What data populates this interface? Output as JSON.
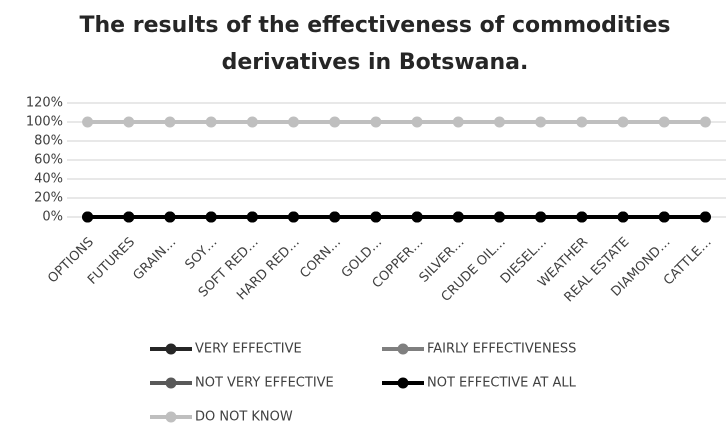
{
  "chart_data": {
    "type": "line",
    "title": [
      "The results of the effectiveness of commodities",
      "derivatives in Botswana."
    ],
    "categories": [
      "OPTIONS",
      "FUTURES",
      "GRAIN…",
      "SOY…",
      "SOFT RED…",
      "HARD RED…",
      "CORN…",
      "GOLD…",
      "COPPER…",
      "SILVER…",
      "CRUDE OIL…",
      "DIESEL…",
      "WEATHER",
      "REAL ESTATE",
      "DIAMOND…",
      "CATTLE…"
    ],
    "series": [
      {
        "name": "DO NOT KNOW",
        "color": "#bfbfbf",
        "values": [
          100,
          100,
          100,
          100,
          100,
          100,
          100,
          100,
          100,
          100,
          100,
          100,
          100,
          100,
          100,
          100
        ]
      },
      {
        "name": "FAIRLY EFFECTIVENESS",
        "color": "#7f7f7f",
        "values": [
          0,
          0,
          0,
          0,
          0,
          0,
          0,
          0,
          0,
          0,
          0,
          0,
          0,
          0,
          0,
          0
        ]
      },
      {
        "name": "NOT VERY EFFECTIVE",
        "color": "#595959",
        "values": [
          0,
          0,
          0,
          0,
          0,
          0,
          0,
          0,
          0,
          0,
          0,
          0,
          0,
          0,
          0,
          0
        ]
      },
      {
        "name": "VERY EFFECTIVE",
        "color": "#262626",
        "values": [
          0,
          0,
          0,
          0,
          0,
          0,
          0,
          0,
          0,
          0,
          0,
          0,
          0,
          0,
          0,
          0
        ]
      },
      {
        "name": "NOT EFFECTIVE AT ALL",
        "color": "#000000",
        "values": [
          0,
          0,
          0,
          0,
          0,
          0,
          0,
          0,
          0,
          0,
          0,
          0,
          0,
          0,
          0,
          0
        ]
      }
    ],
    "ylim": [
      0,
      120
    ],
    "yticks": [
      {
        "value": 0,
        "label": "0%"
      },
      {
        "value": 20,
        "label": "20%"
      },
      {
        "value": 40,
        "label": "40%"
      },
      {
        "value": 60,
        "label": "60%"
      },
      {
        "value": 80,
        "label": "80%"
      },
      {
        "value": 100,
        "label": "100%"
      },
      {
        "value": 120,
        "label": "120%"
      }
    ],
    "grid": true,
    "legend": "bottom"
  }
}
